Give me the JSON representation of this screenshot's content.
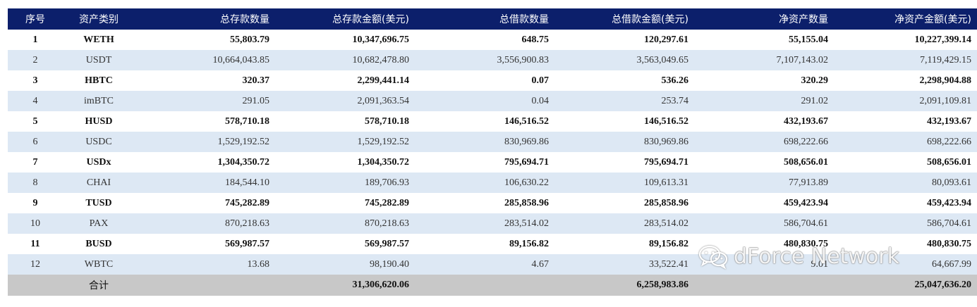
{
  "header": [
    "序号",
    "资产类别",
    "总存款数量",
    "总存款金额(美元)",
    "总借款数量",
    "总借款金额(美元)",
    "净资产数量",
    "净资产金额(美元)"
  ],
  "rows": [
    {
      "idx": "1",
      "asset": "WETH",
      "deposit_qty": "55,803.79",
      "deposit_usd": "10,347,696.75",
      "borrow_qty": "648.75",
      "borrow_usd": "120,297.61",
      "net_qty": "55,155.04",
      "net_usd": "10,227,399.14"
    },
    {
      "idx": "2",
      "asset": "USDT",
      "deposit_qty": "10,664,043.85",
      "deposit_usd": "10,682,478.80",
      "borrow_qty": "3,556,900.83",
      "borrow_usd": "3,563,049.65",
      "net_qty": "7,107,143.02",
      "net_usd": "7,119,429.15"
    },
    {
      "idx": "3",
      "asset": "HBTC",
      "deposit_qty": "320.37",
      "deposit_usd": "2,299,441.14",
      "borrow_qty": "0.07",
      "borrow_usd": "536.26",
      "net_qty": "320.29",
      "net_usd": "2,298,904.88"
    },
    {
      "idx": "4",
      "asset": "imBTC",
      "deposit_qty": "291.05",
      "deposit_usd": "2,091,363.54",
      "borrow_qty": "0.04",
      "borrow_usd": "253.74",
      "net_qty": "291.02",
      "net_usd": "2,091,109.81"
    },
    {
      "idx": "5",
      "asset": "HUSD",
      "deposit_qty": "578,710.18",
      "deposit_usd": "578,710.18",
      "borrow_qty": "146,516.52",
      "borrow_usd": "146,516.52",
      "net_qty": "432,193.67",
      "net_usd": "432,193.67"
    },
    {
      "idx": "6",
      "asset": "USDC",
      "deposit_qty": "1,529,192.52",
      "deposit_usd": "1,529,192.52",
      "borrow_qty": "830,969.86",
      "borrow_usd": "830,969.86",
      "net_qty": "698,222.66",
      "net_usd": "698,222.66"
    },
    {
      "idx": "7",
      "asset": "USDx",
      "deposit_qty": "1,304,350.72",
      "deposit_usd": "1,304,350.72",
      "borrow_qty": "795,694.71",
      "borrow_usd": "795,694.71",
      "net_qty": "508,656.01",
      "net_usd": "508,656.01"
    },
    {
      "idx": "8",
      "asset": "CHAI",
      "deposit_qty": "184,544.10",
      "deposit_usd": "189,706.93",
      "borrow_qty": "106,630.22",
      "borrow_usd": "109,613.31",
      "net_qty": "77,913.89",
      "net_usd": "80,093.61"
    },
    {
      "idx": "9",
      "asset": "TUSD",
      "deposit_qty": "745,282.89",
      "deposit_usd": "745,282.89",
      "borrow_qty": "285,858.96",
      "borrow_usd": "285,858.96",
      "net_qty": "459,423.94",
      "net_usd": "459,423.94"
    },
    {
      "idx": "10",
      "asset": "PAX",
      "deposit_qty": "870,218.63",
      "deposit_usd": "870,218.63",
      "borrow_qty": "283,514.02",
      "borrow_usd": "283,514.02",
      "net_qty": "586,704.61",
      "net_usd": "586,704.61"
    },
    {
      "idx": "11",
      "asset": "BUSD",
      "deposit_qty": "569,987.57",
      "deposit_usd": "569,987.57",
      "borrow_qty": "89,156.82",
      "borrow_usd": "89,156.82",
      "net_qty": "480,830.75",
      "net_usd": "480,830.75"
    },
    {
      "idx": "12",
      "asset": "WBTC",
      "deposit_qty": "13.68",
      "deposit_usd": "98,190.40",
      "borrow_qty": "4.67",
      "borrow_usd": "33,522.41",
      "net_qty": "9.01",
      "net_usd": "64,667.99"
    }
  ],
  "total": {
    "label": "合计",
    "deposit_usd": "31,306,620.06",
    "borrow_usd": "6,258,983.86",
    "net_usd": "25,047,636.20"
  },
  "watermark": {
    "text": "dForce Network",
    "icon": "wechat-icon"
  },
  "colors": {
    "header_bg": "#0c1f6b",
    "stripe": "#dde8f4",
    "total_bg": "#c8c8c8"
  }
}
